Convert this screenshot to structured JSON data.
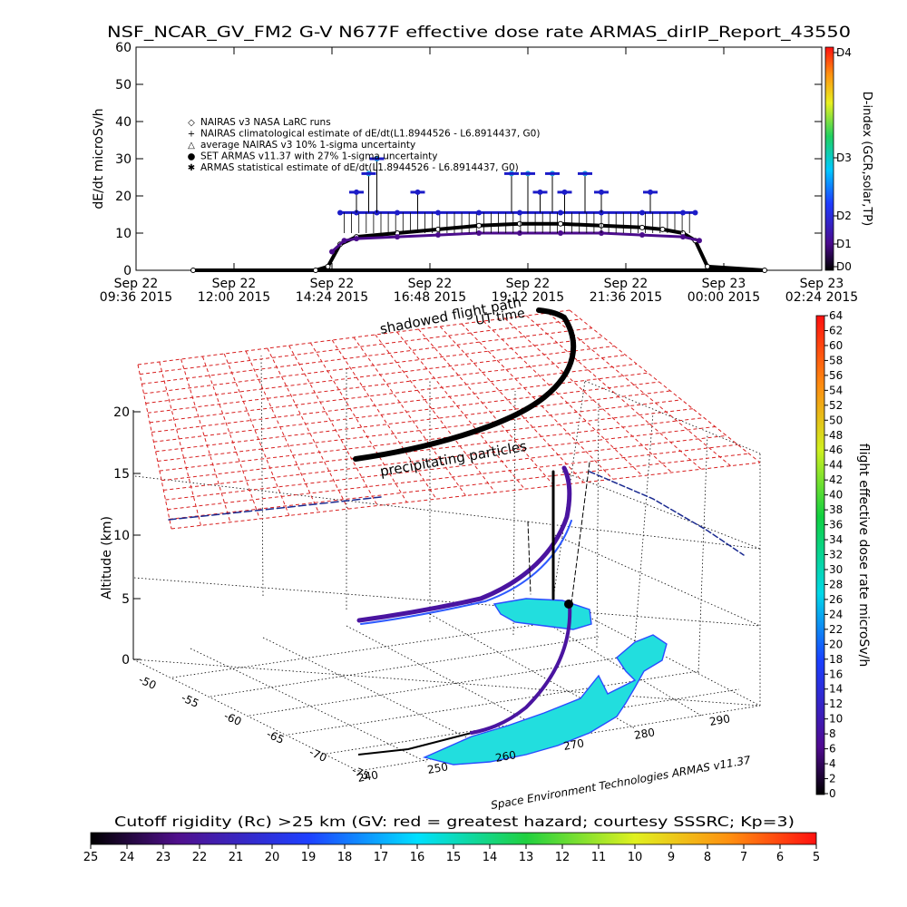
{
  "header": {
    "title": "NSF_NCAR_GV_FM2 G-V     N677F  effective dose rate ARMAS_dirIP_Report_43550"
  },
  "colors": {
    "nairas_band": "#1c1cc8",
    "armas_points": "#4b0c8c",
    "grid_red": "#d82020",
    "cyan_region": "#22dede",
    "track_dark": "#000000",
    "track_purple": "#4a14a0"
  },
  "chart_data": [
    {
      "type": "line",
      "ylabel": "dE/dt microSv/h",
      "ylim": [
        0,
        60
      ],
      "yticks": [
        "0",
        "10",
        "20",
        "30",
        "40",
        "50",
        "60"
      ],
      "xticks": [
        {
          "line1": "Sep 22",
          "line2": "09:36 2015"
        },
        {
          "line1": "Sep 22",
          "line2": "12:00 2015"
        },
        {
          "line1": "Sep 22",
          "line2": "14:24 2015"
        },
        {
          "line1": "Sep 22",
          "line2": "16:48 2015"
        },
        {
          "line1": "Sep 22",
          "line2": "19:12 2015"
        },
        {
          "line1": "Sep 22",
          "line2": "21:36 2015"
        },
        {
          "line1": "Sep 23",
          "line2": "00:00 2015"
        },
        {
          "line1": "Sep 23",
          "line2": "02:24 2015"
        }
      ],
      "legend": [
        {
          "symbol": "◇",
          "label": "NAIRAS v3 NASA LaRC runs"
        },
        {
          "symbol": "+",
          "label": "NAIRAS climatological estimate of dE/dt(L1.8944526 - L6.8914437, G0)"
        },
        {
          "symbol": "△",
          "label": "average NAIRAS v3 10% 1-sigma uncertainty"
        },
        {
          "symbol": "●",
          "label": "SET ARMAS v11.37 with 27% 1-sigma uncertainty"
        },
        {
          "symbol": "✱",
          "label": "ARMAS statistical estimate of dE/dt(L1.8944526 - L6.8914437, G0)"
        }
      ],
      "series": [
        {
          "name": "NAIRAS v3 NASA LaRC runs",
          "x_hours": [
            11.0,
            14.0,
            14.3,
            14.6,
            15.0,
            16.0,
            17.0,
            18.0,
            19.0,
            20.0,
            21.0,
            22.0,
            22.5,
            23.0,
            23.3,
            23.6,
            25.0
          ],
          "values": [
            0,
            0,
            1,
            7,
            9,
            10,
            11,
            12,
            12.5,
            12.5,
            12,
            11.5,
            11,
            10,
            8,
            1,
            0
          ]
        },
        {
          "name": "SET ARMAS v11.37 with 27% 1-sigma uncertainty",
          "x_hours": [
            14.6,
            15.0,
            15.5,
            16.0,
            17.0,
            18.0,
            19.0,
            20.0,
            21.0,
            22.0,
            23.0,
            23.3
          ],
          "values": [
            15.5,
            15.5,
            15.5,
            15.5,
            15.5,
            15.5,
            15.5,
            15.5,
            15.5,
            15.5,
            15.5,
            15.5
          ]
        },
        {
          "name": "ARMAS statistical estimate of dE/dt(L1.8944526 - L6.8914437, G0)",
          "x_hours": [
            14.4,
            14.7,
            15.0,
            16.0,
            17.0,
            18.0,
            19.0,
            20.0,
            21.0,
            22.0,
            23.0,
            23.4
          ],
          "values": [
            5,
            8,
            8.5,
            9,
            9.5,
            10,
            10,
            10,
            10,
            9.5,
            9,
            8
          ]
        }
      ],
      "spikes": [
        {
          "x_hours": 15.0,
          "value": 21
        },
        {
          "x_hours": 15.3,
          "value": 26
        },
        {
          "x_hours": 15.5,
          "value": 30
        },
        {
          "x_hours": 16.5,
          "value": 21
        },
        {
          "x_hours": 18.8,
          "value": 26
        },
        {
          "x_hours": 19.2,
          "value": 26
        },
        {
          "x_hours": 19.5,
          "value": 21
        },
        {
          "x_hours": 19.8,
          "value": 26
        },
        {
          "x_hours": 20.1,
          "value": 21
        },
        {
          "x_hours": 20.6,
          "value": 26
        },
        {
          "x_hours": 21.0,
          "value": 21
        },
        {
          "x_hours": 22.2,
          "value": 21
        }
      ],
      "colorbar": {
        "title": "D-index (GCR,solar,TP)",
        "ticks": [
          "D0",
          "D1",
          "D2",
          "D3",
          "D4"
        ]
      }
    },
    {
      "type": "scatter",
      "zlabel": "Altitude (km)",
      "zlim": [
        0,
        20
      ],
      "zticks": [
        "0",
        "5",
        "10",
        "15",
        "20"
      ],
      "latitude_ticks": [
        "-50",
        "-55",
        "-60",
        "-65",
        "-70",
        "-75"
      ],
      "longitude_ticks": [
        "240",
        "250",
        "260",
        "270",
        "280",
        "290"
      ],
      "annotations": [
        "shadowed flight path",
        "UT time",
        "precipitating particles"
      ],
      "credit": "Space Environment Technologies ARMAS v11.37",
      "colorbar": {
        "title": "flight effective dose rate microSv/h",
        "ticks": [
          "0",
          "2",
          "4",
          "6",
          "8",
          "10",
          "12",
          "14",
          "16",
          "18",
          "20",
          "22",
          "24",
          "26",
          "28",
          "30",
          "32",
          "34",
          "36",
          "38",
          "40",
          "42",
          "44",
          "46",
          "48",
          "50",
          "52",
          "54",
          "56",
          "58",
          "60",
          "62",
          "64"
        ]
      }
    }
  ],
  "footer": {
    "rc_caption": "Cutoff rigidity (Rc) >25 km (GV: red = greatest hazard; courtesy SSSRC; Kp=3)",
    "rc_ticks": [
      "25",
      "24",
      "23",
      "22",
      "21",
      "20",
      "19",
      "18",
      "17",
      "16",
      "15",
      "14",
      "13",
      "12",
      "11",
      "10",
      "9",
      "8",
      "7",
      "6",
      "5"
    ]
  }
}
